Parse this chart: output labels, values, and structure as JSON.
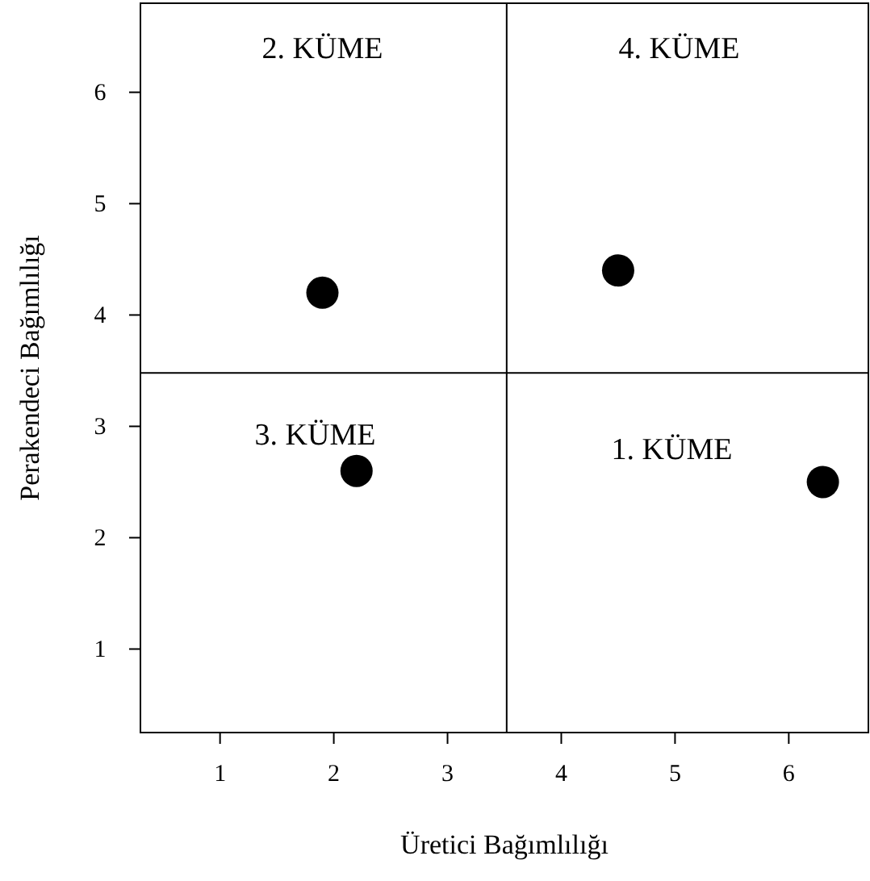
{
  "chart_data": {
    "type": "scatter",
    "xlabel": "Üretici Bağımlılığı",
    "ylabel": "Perakendeci  Bağımlılığı",
    "x": [
      1.9,
      4.5,
      2.2,
      6.3
    ],
    "values": [
      4.2,
      4.4,
      2.6,
      2.5
    ],
    "color": "#000000",
    "marker": "circle",
    "xlim": [
      0.3,
      6.7
    ],
    "xticks": [
      1,
      2,
      3,
      4,
      5,
      6
    ],
    "ylim": [
      0.25,
      6.8
    ],
    "yticks": [
      1,
      2,
      3,
      4,
      5,
      6
    ],
    "grid": false,
    "ref_lines": [
      {
        "axis": "x",
        "value": 3.52,
        "color": "#000000"
      },
      {
        "axis": "y",
        "value": 3.48,
        "color": "#000000"
      }
    ],
    "annotations": [
      "2. KÜME",
      "4. KÜME",
      "3. KÜME",
      "1. KÜME"
    ]
  }
}
